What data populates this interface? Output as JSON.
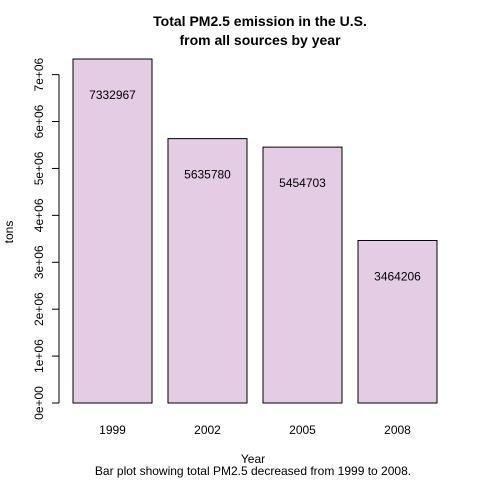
{
  "chart_data": {
    "type": "bar",
    "title_lines": [
      "Total PM2.5 emission in the U.S.",
      "from all sources by year"
    ],
    "xlabel": "Year",
    "ylabel": "tons",
    "caption": "Bar plot showing total PM2.5 decreased from 1999 to 2008.",
    "categories": [
      "1999",
      "2002",
      "2005",
      "2008"
    ],
    "values": [
      7332967,
      5635780,
      5454703,
      3464206
    ],
    "data_labels": [
      "7332967",
      "5635780",
      "5454703",
      "3464206"
    ],
    "ylim": [
      0,
      7332967
    ],
    "yticks": [
      0,
      1000000,
      2000000,
      3000000,
      4000000,
      5000000,
      6000000,
      7000000
    ],
    "ytick_labels": [
      "0e+00",
      "1e+06",
      "2e+06",
      "3e+06",
      "4e+06",
      "5e+06",
      "6e+06",
      "7e+06"
    ],
    "grid": false,
    "bar_color": "#e5cce5",
    "bar_border": "#000000"
  }
}
